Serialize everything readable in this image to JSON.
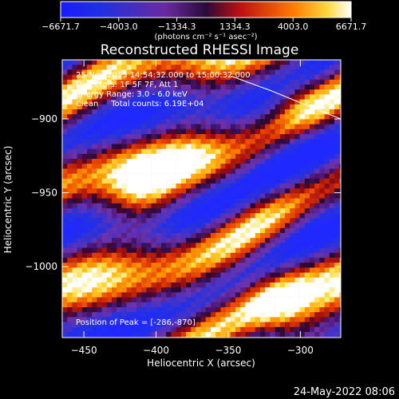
{
  "colorbar": {
    "ticks": [
      "-6671.7",
      "-4003.0",
      "-1334.3",
      "1334.3",
      "4003.0",
      "6671.7"
    ],
    "tick_values": [
      -6671.7,
      -4003.0,
      -1334.3,
      1334.3,
      4003.0,
      6671.7
    ],
    "range": [
      -6671.7,
      6671.7
    ],
    "units": "(photons cm⁻² s⁻¹ asec⁻²)"
  },
  "chart_data": {
    "type": "heatmap",
    "title": "Reconstructed RHESSI Image",
    "xlabel": "Heliocentric X (arcsec)",
    "ylabel": "Heliocentric Y (arcsec)",
    "xlim": [
      -465,
      -272
    ],
    "ylim": [
      -1048,
      -860
    ],
    "x_ticks": [
      -450,
      -400,
      -350,
      -300
    ],
    "y_ticks": [
      -900,
      -950,
      -1000
    ],
    "x_tick_labels": [
      "−450",
      "−400",
      "−350",
      "−300"
    ],
    "y_tick_labels": [
      "−900",
      "−950",
      "−1000"
    ],
    "colormap": "blue-purple-red-yellow-white",
    "peak_position": [
      -286,
      -870
    ],
    "limb_curve": [
      [
        -348,
        -871
      ],
      [
        -320,
        -881
      ],
      [
        -295,
        -891
      ],
      [
        -272,
        -900
      ]
    ],
    "annotations": [
      "25-Nov-2015 14:54:32.000 to 15:00:32.000",
      "Detectors: 1F 5F 7F, Att 1",
      "Energy Range: 3.0 - 6.0 keV",
      "Clean     Total counts: 6.19E+04",
      "Position of Peak = [-286,-870]"
    ]
  },
  "footer": {
    "date": "24-May-2022 08:06"
  }
}
